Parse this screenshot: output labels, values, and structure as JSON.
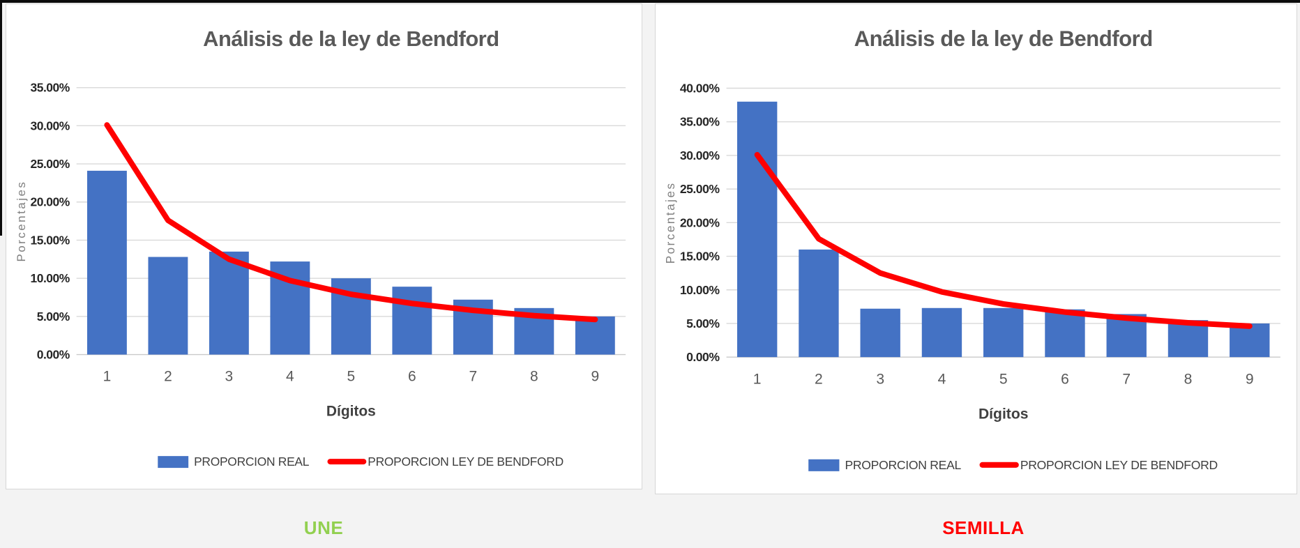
{
  "page": {
    "background": "#f3f3f3",
    "card_background": "#ffffff",
    "card_border": "#d6d6d6",
    "top_strip_color": "#0b0b0b"
  },
  "colors": {
    "bar": "#4472C4",
    "line": "#FF0000",
    "title": "#595959",
    "ytick": "#262626",
    "xtick": "#595959",
    "grid": "#d9d9d9",
    "axis_line": "#c9c9c9",
    "axis_title": "#7f7f7f",
    "xaxis_title": "#404040",
    "legend_text": "#3f3f3f"
  },
  "legend": {
    "real_label": "PROPORCION REAL",
    "benford_label": "PROPORCION LEY DE BENDFORD"
  },
  "captions": {
    "left": "UNE",
    "left_color": "#92D050",
    "right": "SEMILLA",
    "right_color": "#FF0000"
  },
  "chart_data": [
    {
      "id": "une",
      "type": "combo-bar-line",
      "title": "Análisis de la ley de Bendford",
      "xlabel": "Dígitos",
      "ylabel": "Porcentajes",
      "caption": "UNE",
      "categories": [
        "1",
        "2",
        "3",
        "4",
        "5",
        "6",
        "7",
        "8",
        "9"
      ],
      "ylim": [
        0,
        35
      ],
      "ytick_step": 5,
      "ytick_format": "percent2",
      "grid": true,
      "legend_position": "bottom",
      "series": [
        {
          "name": "PROPORCION REAL",
          "type": "bar",
          "color": "#4472C4",
          "values": [
            24.1,
            12.8,
            13.5,
            12.2,
            10.0,
            8.9,
            7.2,
            6.1,
            5.0
          ]
        },
        {
          "name": "PROPORCION LEY DE BENDFORD",
          "type": "line",
          "color": "#FF0000",
          "values": [
            30.1,
            17.6,
            12.5,
            9.7,
            7.9,
            6.7,
            5.8,
            5.1,
            4.6
          ]
        }
      ]
    },
    {
      "id": "semilla",
      "type": "combo-bar-line",
      "title": "Análisis de la ley de Bendford",
      "xlabel": "Dígitos",
      "ylabel": "Porcentajes",
      "caption": "SEMILLA",
      "categories": [
        "1",
        "2",
        "3",
        "4",
        "5",
        "6",
        "7",
        "8",
        "9"
      ],
      "ylim": [
        0,
        40
      ],
      "ytick_step": 5,
      "ytick_format": "percent2",
      "grid": true,
      "legend_position": "bottom",
      "series": [
        {
          "name": "PROPORCION REAL",
          "type": "bar",
          "color": "#4472C4",
          "values": [
            38.0,
            16.0,
            7.2,
            7.3,
            7.3,
            7.1,
            6.4,
            5.5,
            5.0
          ]
        },
        {
          "name": "PROPORCION LEY DE BENDFORD",
          "type": "line",
          "color": "#FF0000",
          "values": [
            30.1,
            17.6,
            12.5,
            9.7,
            7.9,
            6.7,
            5.8,
            5.1,
            4.6
          ]
        }
      ]
    }
  ]
}
